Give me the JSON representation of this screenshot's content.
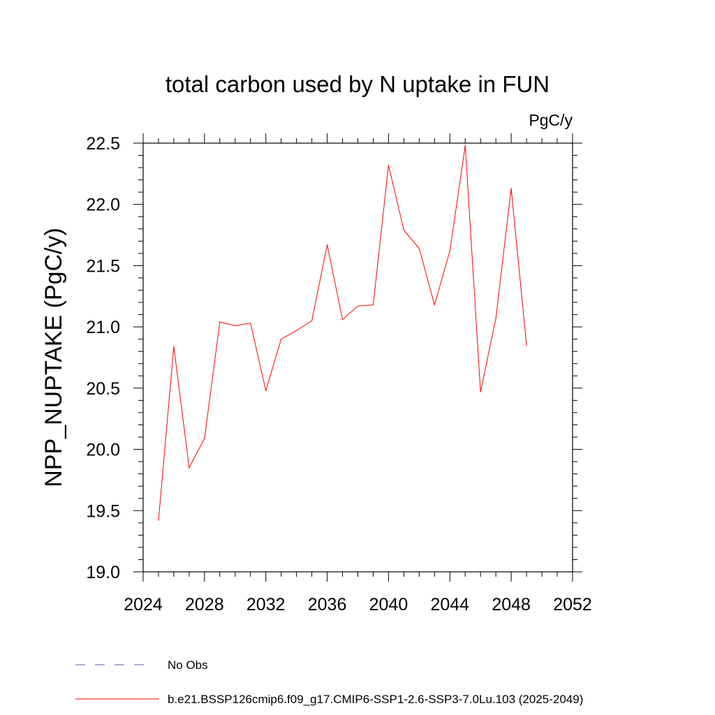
{
  "chart_data": {
    "type": "line",
    "title": "total carbon used by N uptake in FUN",
    "units_label": "PgC/y",
    "ylabel": "NPP_NUPTAKE  (PgC/y)",
    "xlabel": "",
    "xlim": [
      2024,
      2052
    ],
    "ylim": [
      19.0,
      22.5
    ],
    "xticks": [
      2024,
      2028,
      2032,
      2036,
      2040,
      2044,
      2048,
      2052
    ],
    "xtick_labels": [
      "2024",
      "2028",
      "2032",
      "2036",
      "2040",
      "2044",
      "2048",
      "2052"
    ],
    "yticks": [
      19.0,
      19.5,
      20.0,
      20.5,
      21.0,
      21.5,
      22.0,
      22.5
    ],
    "ytick_labels": [
      "19.0",
      "19.5",
      "20.0",
      "20.5",
      "21.0",
      "21.5",
      "22.0",
      "22.5"
    ],
    "grid": false,
    "legend_position": "bottom",
    "series": [
      {
        "name": "b.e21.BSSP126cmip6.f09_g17.CMIP6-SSP1-2.6-SSP3-7.0Lu.103 (2025-2049)",
        "color": "#ff0000",
        "style": "solid",
        "x": [
          2025,
          2026,
          2027,
          2028,
          2029,
          2030,
          2031,
          2032,
          2033,
          2034,
          2035,
          2036,
          2037,
          2038,
          2039,
          2040,
          2041,
          2042,
          2043,
          2044,
          2045,
          2046,
          2047,
          2048,
          2049
        ],
        "y": [
          19.42,
          20.84,
          19.85,
          20.09,
          21.04,
          21.01,
          21.03,
          20.48,
          20.9,
          20.97,
          21.05,
          21.67,
          21.06,
          21.17,
          21.18,
          22.32,
          21.79,
          21.64,
          21.18,
          21.62,
          22.48,
          20.47,
          21.07,
          22.13,
          20.85
        ]
      }
    ],
    "legend": [
      {
        "label": "No Obs",
        "color": "#6655aa",
        "style": "dashed"
      },
      {
        "label": "b.e21.BSSP126cmip6.f09_g17.CMIP6-SSP1-2.6-SSP3-7.0Lu.103 (2025-2049)",
        "color": "#ff0000",
        "style": "solid"
      }
    ]
  }
}
